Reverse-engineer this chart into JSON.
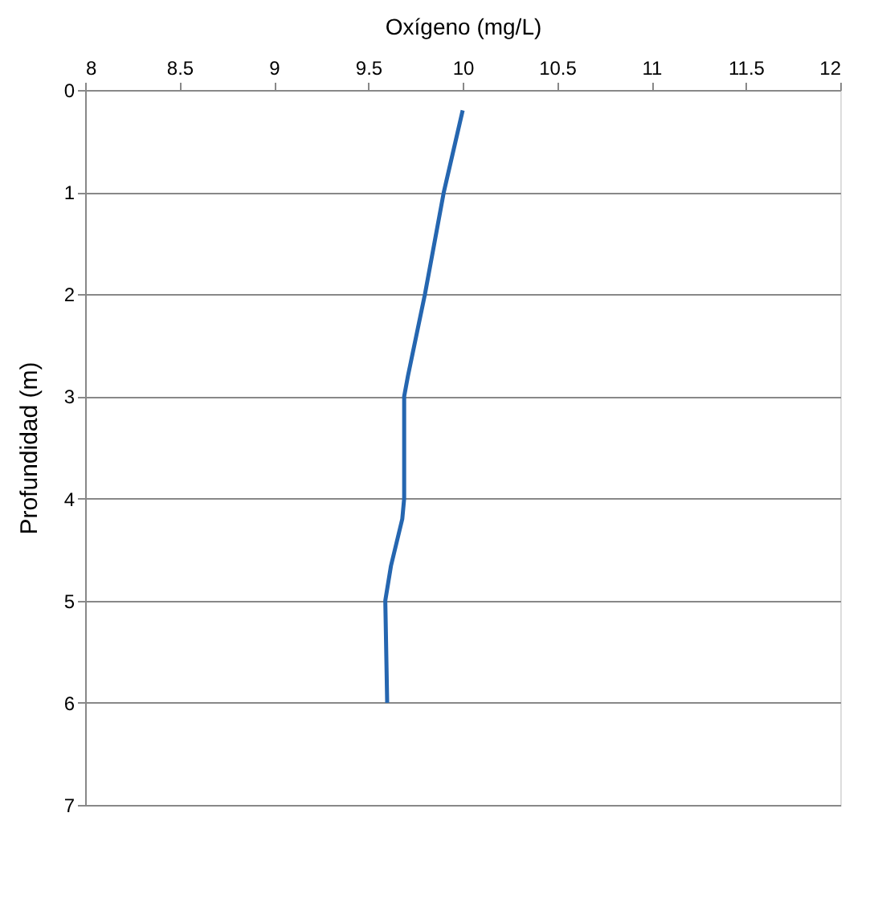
{
  "chart_data": {
    "type": "line",
    "xlabel": "Oxígeno (mg/L)",
    "ylabel": "Profundidad (m)",
    "xlim": [
      8,
      12
    ],
    "xticks": [
      8,
      8.5,
      9,
      9.5,
      10,
      10.5,
      11,
      11.5,
      12
    ],
    "ylim": [
      7,
      0
    ],
    "yticks": [
      0,
      1,
      2,
      3,
      4,
      5,
      6,
      7
    ],
    "grid": "y",
    "marker": "none",
    "line_style": "solid",
    "series": [
      {
        "color": "#2566b0",
        "x": [
          10.0,
          9.9,
          9.8,
          9.71,
          9.69,
          9.69,
          9.68,
          9.62,
          9.59,
          9.6
        ],
        "values": [
          0.2,
          1,
          2,
          2.8,
          3,
          4,
          4.2,
          4.66,
          5,
          6
        ]
      }
    ]
  }
}
